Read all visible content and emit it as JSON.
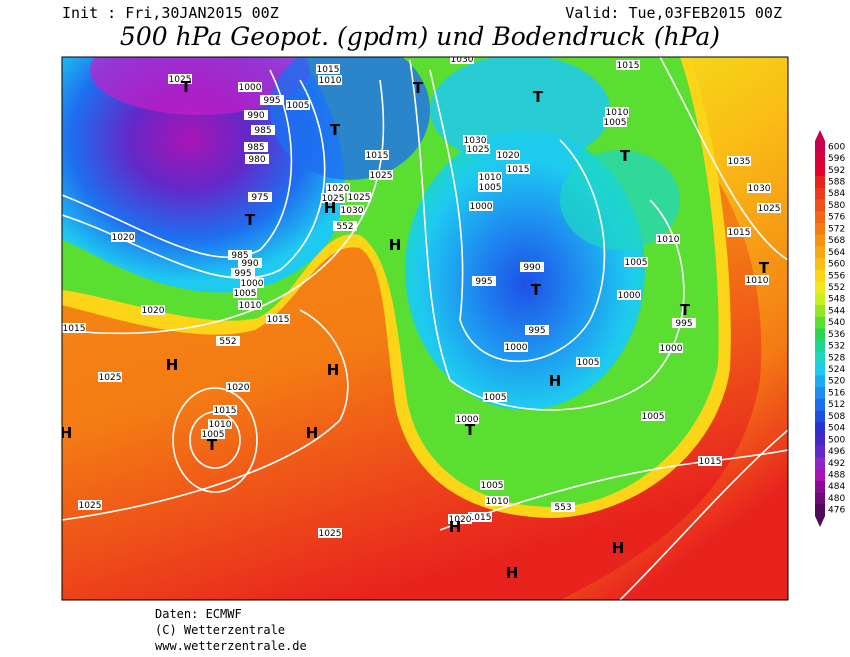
{
  "header": {
    "init": "Init : Fri,30JAN2015 00Z",
    "valid": "Valid: Tue,03FEB2015 00Z",
    "title": "500 hPa Geopot. (gpdm) und Bodendruck (hPa)"
  },
  "colorbar": {
    "levels": [
      600,
      596,
      592,
      588,
      584,
      580,
      576,
      572,
      568,
      564,
      560,
      556,
      552,
      548,
      544,
      540,
      536,
      532,
      528,
      524,
      520,
      516,
      512,
      508,
      504,
      500,
      496,
      492,
      488,
      484,
      480,
      476
    ],
    "colors": [
      "#c8004b",
      "#d9003a",
      "#e4002a",
      "#e8231e",
      "#ec3a1a",
      "#ef5018",
      "#f26616",
      "#f47c14",
      "#f69212",
      "#f8a814",
      "#fabe16",
      "#fcd418",
      "#f0e81a",
      "#c8f01e",
      "#96e628",
      "#5ade32",
      "#28d650",
      "#1ed68c",
      "#1ed6c4",
      "#1ecaf0",
      "#1eaaf0",
      "#1e8cf0",
      "#1e6ef0",
      "#1e50e6",
      "#2832d2",
      "#4628c8",
      "#6428c8",
      "#8c28c8",
      "#aa14b4",
      "#8c0a96",
      "#6e0a78",
      "#500a5a"
    ]
  },
  "map": {
    "isobar_labels": [
      1025,
      1000,
      1015,
      1010,
      995,
      1005,
      990,
      985,
      985,
      980,
      975,
      985,
      990,
      995,
      1000,
      1005,
      1010,
      1015,
      1020,
      1020,
      1015,
      1025,
      1020,
      1015,
      1010,
      1005,
      1025,
      1025,
      1015,
      1025,
      1020,
      1025,
      1025,
      1030,
      552,
      552,
      1030,
      1030,
      1025,
      1020,
      1015,
      1010,
      1005,
      1000,
      990,
      995,
      995,
      1000,
      1005,
      1005,
      1000,
      1005,
      1010,
      1015,
      1020,
      553,
      1015,
      1010,
      1005,
      1035,
      1030,
      1025,
      1010,
      1005,
      1000,
      1015,
      1010,
      995,
      1000,
      1005,
      1015
    ],
    "pressure_centers": [
      "T",
      "T",
      "T",
      "T",
      "T",
      "T",
      "H",
      "H",
      "T",
      "H",
      "H",
      "T",
      "H",
      "H",
      "H",
      "T",
      "H",
      "H",
      "H",
      "T",
      "T"
    ]
  },
  "footer": [
    "Daten: ECMWF",
    "(C) Wetterzentrale",
    "www.wetterzentrale.de"
  ]
}
